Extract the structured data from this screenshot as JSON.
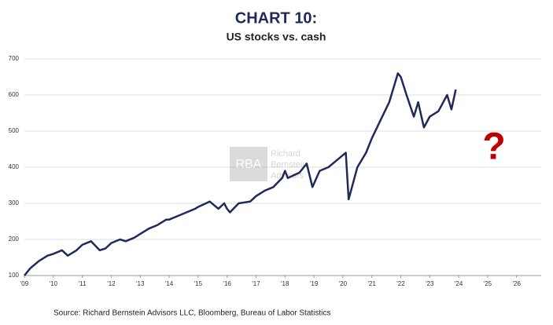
{
  "chart_data": {
    "type": "line",
    "title": "CHART 10:",
    "subtitle": "US stocks vs. cash",
    "source": "Source: Richard Bernstein Advisors LLC, Bloomberg, Bureau of Labor Statistics",
    "annotation": "?",
    "watermark": [
      "RBA",
      "Richard",
      "Bernstein",
      "Advisors"
    ],
    "x": [
      2009.0,
      2009.2,
      2009.5,
      2009.8,
      2010.0,
      2010.3,
      2010.5,
      2010.8,
      2011.0,
      2011.3,
      2011.6,
      2011.8,
      2012.0,
      2012.3,
      2012.5,
      2012.8,
      2013.0,
      2013.3,
      2013.6,
      2013.9,
      2014.0,
      2014.3,
      2014.6,
      2014.9,
      2015.0,
      2015.4,
      2015.7,
      2015.9,
      2016.0,
      2016.1,
      2016.4,
      2016.8,
      2017.0,
      2017.3,
      2017.6,
      2017.9,
      2018.0,
      2018.1,
      2018.5,
      2018.75,
      2018.95,
      2019.2,
      2019.5,
      2019.8,
      2020.1,
      2020.2,
      2020.5,
      2020.8,
      2021.0,
      2021.3,
      2021.6,
      2021.9,
      2022.0,
      2022.2,
      2022.45,
      2022.6,
      2022.8,
      2023.0,
      2023.3,
      2023.6,
      2023.75,
      2023.9
    ],
    "series": [
      {
        "name": "US stocks vs. cash",
        "color": "#1f2a5a",
        "values": [
          100,
          120,
          140,
          155,
          160,
          170,
          155,
          170,
          185,
          195,
          170,
          175,
          190,
          200,
          195,
          205,
          215,
          230,
          240,
          255,
          255,
          265,
          275,
          285,
          290,
          305,
          285,
          300,
          285,
          275,
          300,
          305,
          320,
          335,
          345,
          370,
          390,
          370,
          385,
          410,
          345,
          390,
          400,
          420,
          440,
          311,
          400,
          440,
          480,
          530,
          580,
          660,
          650,
          600,
          540,
          580,
          510,
          540,
          555,
          600,
          560,
          615
        ]
      }
    ],
    "xlim": [
      2009,
      2026.85
    ],
    "ylim": [
      100,
      700
    ],
    "xticks": [
      {
        "value": 2009,
        "label": "'09"
      },
      {
        "value": 2010,
        "label": "'10"
      },
      {
        "value": 2011,
        "label": "'11"
      },
      {
        "value": 2012,
        "label": "'12"
      },
      {
        "value": 2013,
        "label": "'13"
      },
      {
        "value": 2014,
        "label": "'14"
      },
      {
        "value": 2015,
        "label": "'15"
      },
      {
        "value": 2016,
        "label": "'16"
      },
      {
        "value": 2017,
        "label": "'17"
      },
      {
        "value": 2018,
        "label": "'18"
      },
      {
        "value": 2019,
        "label": "'19"
      },
      {
        "value": 2020,
        "label": "'20"
      },
      {
        "value": 2021,
        "label": "'21"
      },
      {
        "value": 2022,
        "label": "'22"
      },
      {
        "value": 2023,
        "label": "'23"
      },
      {
        "value": 2024,
        "label": "'24"
      },
      {
        "value": 2025,
        "label": "'25"
      },
      {
        "value": 2026,
        "label": "'26"
      }
    ],
    "yticks": [
      100,
      200,
      300,
      400,
      500,
      600,
      700
    ],
    "grid": true
  }
}
